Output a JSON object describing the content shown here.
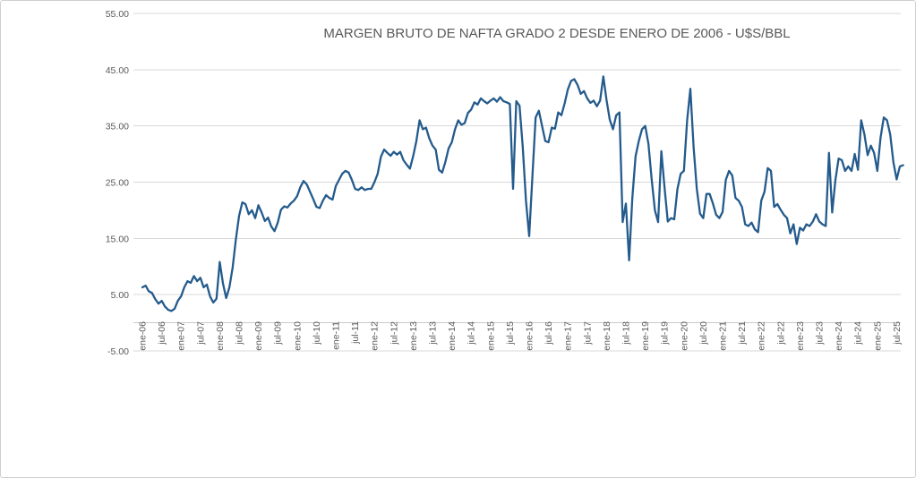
{
  "title": "MARGEN BRUTO DE NAFTA GRADO 2 DESDE ENERO DE 2006 - U$S/BBL",
  "chart_data": {
    "type": "line",
    "title": "MARGEN BRUTO DE NAFTA GRADO 2 DESDE ENERO DE 2006 - U$S/BBL",
    "x_unit": "month",
    "x_start": "ene-06",
    "x_end": "sep-25",
    "y_axis_range": [
      -5,
      55
    ],
    "grid": true,
    "legend": "none",
    "line_color": "#245B8C",
    "text_color": "#595959",
    "grid_color": "#D9D9D9",
    "axis_color": "#C9C9C9",
    "y_tick_labels": [
      "55.00",
      "45.00",
      "35.00",
      "25.00",
      "15.00",
      "5.00",
      "-5.00"
    ],
    "x_tick_labels": [
      "ene-06",
      "jul-06",
      "ene-07",
      "jul-07",
      "ene-08",
      "jul-08",
      "ene-09",
      "jul-09",
      "ene-10",
      "jul-10",
      "ene-11",
      "jul-11",
      "ene-12",
      "jul-12",
      "ene-13",
      "jul-13",
      "ene-14",
      "jul-14",
      "ene-15",
      "jul-15",
      "ene-16",
      "jul-16",
      "ene-17",
      "jul-17",
      "ene-18",
      "jul-18",
      "ene-19",
      "jul-19",
      "ene-20",
      "jul-20",
      "ene-21",
      "jul-21",
      "ene-22",
      "jul-22",
      "ene-23",
      "jul-23",
      "ene-24",
      "jul-24",
      "ene-25",
      "jul-25"
    ],
    "x_tick_every_n_points": 6,
    "values": [
      6.3,
      6.6,
      5.6,
      5.3,
      4.2,
      3.4,
      3.9,
      2.9,
      2.3,
      2.1,
      2.5,
      3.9,
      4.7,
      6.3,
      7.4,
      7.1,
      8.3,
      7.4,
      8.0,
      6.3,
      6.8,
      4.7,
      3.6,
      4.3,
      10.8,
      7.0,
      4.4,
      6.3,
      9.8,
      14.8,
      19.0,
      21.4,
      21.1,
      19.3,
      20.0,
      18.6,
      20.9,
      19.6,
      18.1,
      18.7,
      17.1,
      16.3,
      17.8,
      20.1,
      20.7,
      20.5,
      21.2,
      21.7,
      22.5,
      24.1,
      25.2,
      24.6,
      23.3,
      22.0,
      20.6,
      20.4,
      21.7,
      22.7,
      22.2,
      21.9,
      24.3,
      25.4,
      26.5,
      27.0,
      26.7,
      25.4,
      23.8,
      23.6,
      24.1,
      23.6,
      23.8,
      23.8,
      25.0,
      26.5,
      29.5,
      30.8,
      30.2,
      29.7,
      30.4,
      29.9,
      30.4,
      28.9,
      28.1,
      27.4,
      29.6,
      32.3,
      36.0,
      34.4,
      34.7,
      32.8,
      31.5,
      30.8,
      27.2,
      26.7,
      28.6,
      31.0,
      32.1,
      34.4,
      36.0,
      35.2,
      35.5,
      37.3,
      37.9,
      39.2,
      38.8,
      39.9,
      39.4,
      39.0,
      39.5,
      39.9,
      39.3,
      40.1,
      39.4,
      39.2,
      38.9,
      23.8,
      39.4,
      38.6,
      31.3,
      21.7,
      15.4,
      26.0,
      36.5,
      37.7,
      35.0,
      32.3,
      32.1,
      34.7,
      34.5,
      37.4,
      36.9,
      39.0,
      41.5,
      43.0,
      43.3,
      42.3,
      40.7,
      41.2,
      39.9,
      39.1,
      39.5,
      38.5,
      39.5,
      43.8,
      39.6,
      36.1,
      34.4,
      36.9,
      37.4,
      17.9,
      21.2,
      11.1,
      22.2,
      29.6,
      32.3,
      34.4,
      35.0,
      31.8,
      25.5,
      20.0,
      17.9,
      30.5,
      24.0,
      18.0,
      18.6,
      18.4,
      23.8,
      26.5,
      27.0,
      36.0,
      41.6,
      31.3,
      23.8,
      19.4,
      18.6,
      22.9,
      22.9,
      21.2,
      19.2,
      18.6,
      19.7,
      25.4,
      27.0,
      26.2,
      22.2,
      21.7,
      20.6,
      17.5,
      17.2,
      17.8,
      16.6,
      16.1,
      21.7,
      23.3,
      27.5,
      27.0,
      20.6,
      21.1,
      20.1,
      19.2,
      18.6,
      15.9,
      17.5,
      14.0,
      16.9,
      16.4,
      17.5,
      17.2,
      18.0,
      19.3,
      18.0,
      17.5,
      17.2,
      30.2,
      19.6,
      25.4,
      29.2,
      28.9,
      27.0,
      27.8,
      27.0,
      30.0,
      27.2,
      36.0,
      33.5,
      29.8,
      31.5,
      30.2,
      27.0,
      32.9,
      36.5,
      36.0,
      33.5,
      28.5,
      25.5,
      27.8,
      28.0
    ]
  }
}
